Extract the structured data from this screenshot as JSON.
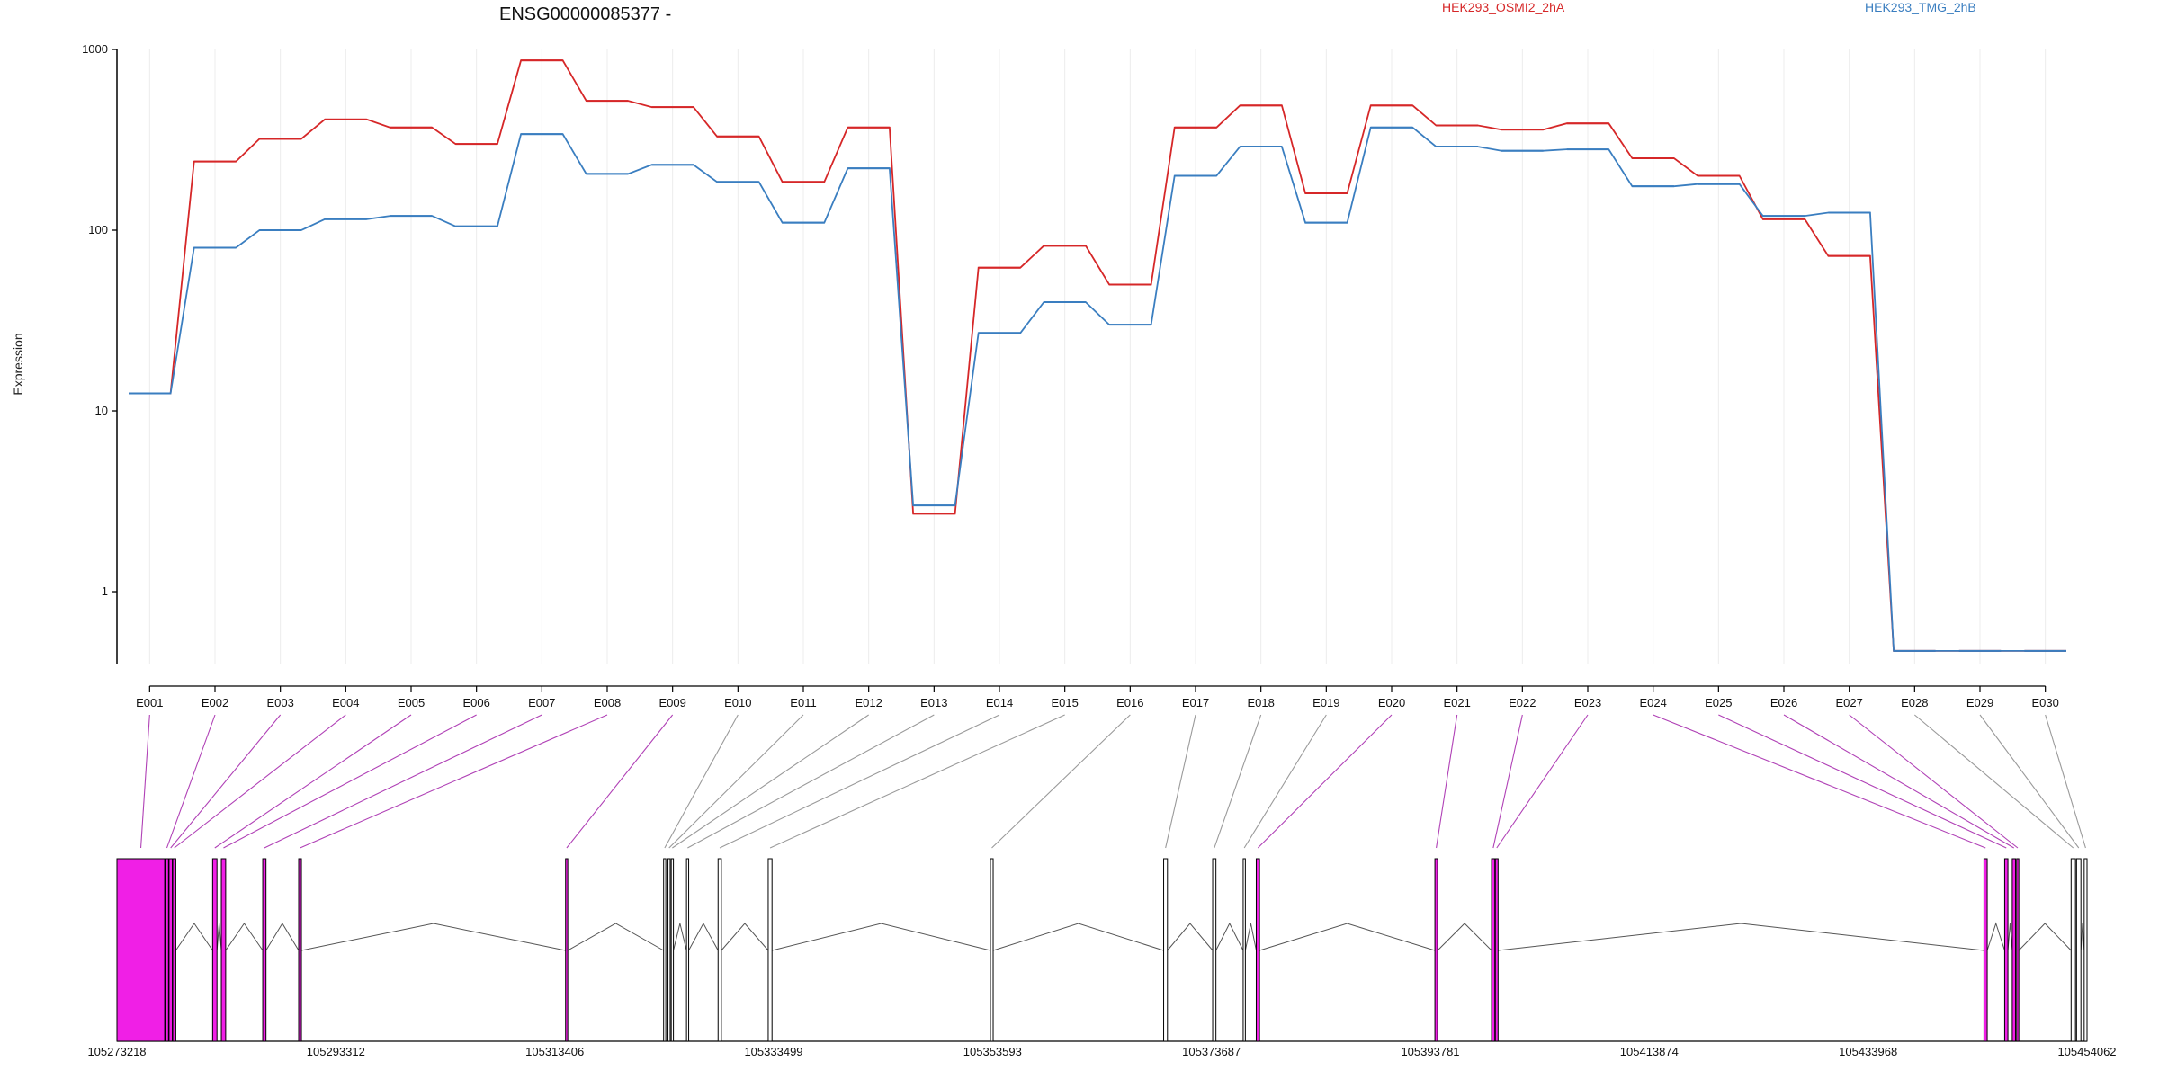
{
  "chart_data": {
    "type": "line",
    "title": "ENSG00000085377 -",
    "ylabel": "Expression",
    "yscale": "log",
    "ylim": [
      0.4,
      1000
    ],
    "ytick_labels": [
      "1000",
      "100",
      "10",
      "1"
    ],
    "ytick_values": [
      1000,
      100,
      10,
      1
    ],
    "categories": [
      "E001",
      "E002",
      "E003",
      "E004",
      "E005",
      "E006",
      "E007",
      "E008",
      "E009",
      "E010",
      "E011",
      "E012",
      "E013",
      "E014",
      "E015",
      "E016",
      "E017",
      "E018",
      "E019",
      "E020",
      "E021",
      "E022",
      "E023",
      "E024",
      "E025",
      "E026",
      "E027",
      "E028",
      "E029",
      "E030"
    ],
    "series": [
      {
        "name": "HEK293_OSMI2_2hA",
        "color": "#d62728",
        "values": [
          12.5,
          240,
          320,
          410,
          370,
          300,
          870,
          520,
          480,
          330,
          185,
          370,
          2.7,
          62,
          82,
          50,
          370,
          490,
          160,
          490,
          380,
          360,
          390,
          250,
          200,
          115,
          72,
          0.47,
          0.47,
          0.47
        ]
      },
      {
        "name": "HEK293_TMG_2hB",
        "color": "#3a7ec0",
        "values": [
          12.5,
          80,
          100,
          115,
          120,
          105,
          340,
          205,
          230,
          185,
          110,
          220,
          3.0,
          27,
          40,
          30,
          200,
          290,
          110,
          370,
          290,
          275,
          280,
          175,
          180,
          120,
          125,
          0.47,
          0.47,
          0.47
        ]
      }
    ],
    "grid": "vertical",
    "legend_position": "top"
  },
  "gene_model": {
    "coordinates": [
      "105273218",
      "105293312",
      "105313406",
      "105333499",
      "105353593",
      "105373687",
      "105393781",
      "105413874",
      "105433968",
      "105454062"
    ],
    "range": [
      105273218,
      105454062
    ],
    "highlight_color": "#f01fe6",
    "highlighted_exons": [
      "E001",
      "E002",
      "E003",
      "E004",
      "E005",
      "E006",
      "E007",
      "E008",
      "E009",
      "E020",
      "E021",
      "E022",
      "E023",
      "E024",
      "E025",
      "E026",
      "E027"
    ]
  }
}
